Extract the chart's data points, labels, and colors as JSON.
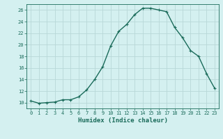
{
  "x": [
    0,
    1,
    2,
    3,
    4,
    5,
    6,
    7,
    8,
    9,
    10,
    11,
    12,
    13,
    14,
    15,
    16,
    17,
    18,
    19,
    20,
    21,
    22,
    23
  ],
  "y": [
    10.3,
    9.9,
    10.0,
    10.1,
    10.5,
    10.5,
    11.0,
    12.2,
    14.0,
    16.2,
    19.8,
    22.3,
    23.5,
    25.2,
    26.3,
    26.3,
    26.0,
    25.7,
    23.0,
    21.2,
    19.0,
    18.0,
    15.0,
    12.5
  ],
  "line_color": "#1a6b5a",
  "marker": "+",
  "marker_size": 3,
  "bg_color": "#d4f0f0",
  "grid_color": "#b8d8d8",
  "xlabel": "Humidex (Indice chaleur)",
  "xlim": [
    -0.5,
    23.5
  ],
  "ylim": [
    9,
    27
  ],
  "yticks": [
    10,
    12,
    14,
    16,
    18,
    20,
    22,
    24,
    26
  ],
  "xticks": [
    0,
    1,
    2,
    3,
    4,
    5,
    6,
    7,
    8,
    9,
    10,
    11,
    12,
    13,
    14,
    15,
    16,
    17,
    18,
    19,
    20,
    21,
    22,
    23
  ],
  "font_color": "#1a6b5a",
  "tick_fontsize": 5,
  "xlabel_fontsize": 6.5,
  "linewidth": 1.0
}
